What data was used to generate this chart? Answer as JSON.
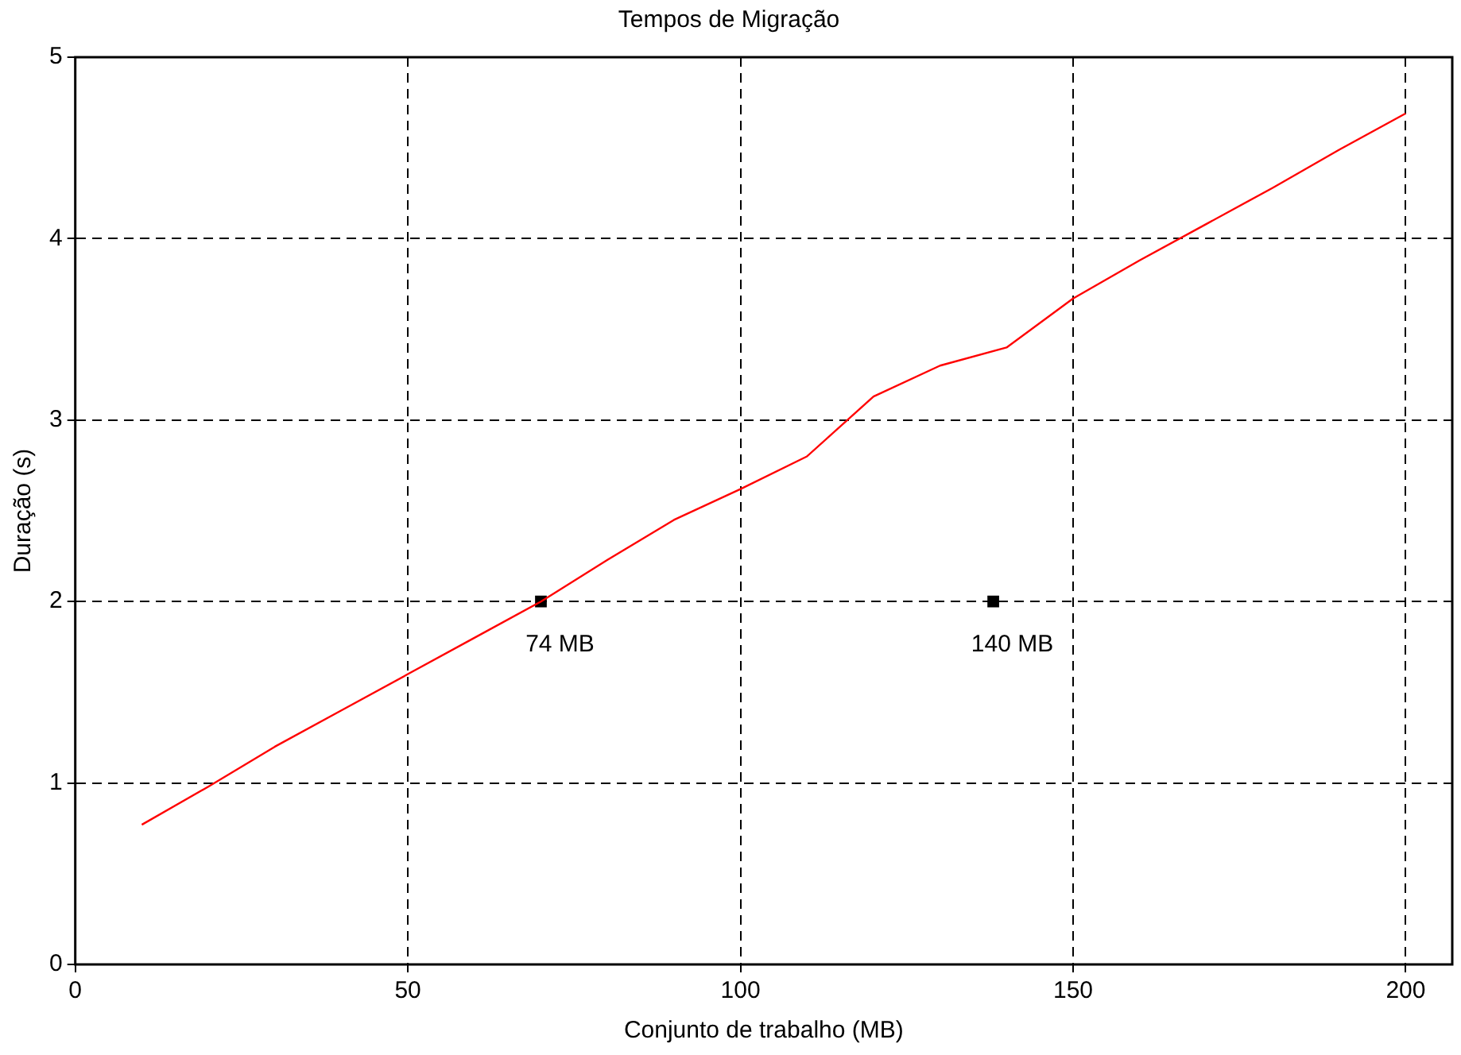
{
  "chart_data": {
    "type": "line",
    "title": "Tempos de Migração",
    "xlabel": "Conjunto de trabalho (MB)",
    "ylabel": "Duração (s)",
    "xlim": [
      0,
      207
    ],
    "xticks": [
      0,
      50,
      100,
      150,
      200
    ],
    "ylim": [
      0,
      5
    ],
    "yticks": [
      0,
      1,
      2,
      3,
      4,
      5
    ],
    "grid": true,
    "legend": false,
    "line_style": "solid",
    "series": [
      {
        "type": "line",
        "color": "#ff0000",
        "x": [
          10,
          20,
          30,
          40,
          50,
          60,
          70,
          80,
          90,
          100,
          110,
          120,
          130,
          140,
          150,
          160,
          170,
          180,
          190,
          200
        ],
        "values": [
          0.77,
          0.98,
          1.2,
          1.4,
          1.6,
          1.8,
          2.0,
          2.23,
          2.45,
          2.62,
          2.8,
          3.13,
          3.3,
          3.4,
          3.67,
          3.88,
          4.08,
          4.28,
          4.49,
          4.69
        ]
      },
      {
        "type": "scatter",
        "color": "#000000",
        "marker": "square",
        "x": [
          70,
          138
        ],
        "values": [
          2,
          2
        ]
      }
    ],
    "annotations": [
      {
        "text": "74 MB",
        "x": 70,
        "y": 2
      },
      {
        "text": "140 MB",
        "x": 138,
        "y": 2
      }
    ]
  }
}
